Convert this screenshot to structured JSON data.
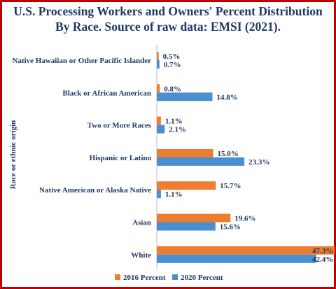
{
  "chart_data": {
    "type": "bar",
    "orientation": "horizontal",
    "title_line1": "U.S. Processing Workers and Owners' Percent Distribution",
    "title_line2": "By Race. Source of raw data: EMSI (2021).",
    "ylabel": "Race or ethnic origin",
    "xlabel": "",
    "categories": [
      "Native Hawaiian or Other Pacific Islander",
      "Black or African American",
      "Two or More Races",
      "Hispanic or Latino",
      "Native American or Alaska Native",
      "Asian",
      "White"
    ],
    "series": [
      {
        "name": "2016 Percent",
        "color": "#ed7d31",
        "values": [
          0.5,
          0.8,
          1.1,
          15.0,
          15.7,
          19.6,
          47.3
        ],
        "labels": [
          "0.5%",
          "0.8%",
          "1.1%",
          "15.0%",
          "15.7%",
          "19.6%",
          "47.3%"
        ]
      },
      {
        "name": "2020 Percent",
        "color": "#4a8fd0",
        "values": [
          0.7,
          14.8,
          2.1,
          23.3,
          1.1,
          15.6,
          42.4
        ],
        "labels": [
          "0.7%",
          "14.8%",
          "2.1%",
          "23.3%",
          "1.1%",
          "15.6%",
          "42.4%"
        ]
      }
    ],
    "xlim": [
      0,
      47.3
    ],
    "grid": false,
    "legend_position": "bottom",
    "border_color": "#c00000",
    "text_color": "#1f3864"
  }
}
